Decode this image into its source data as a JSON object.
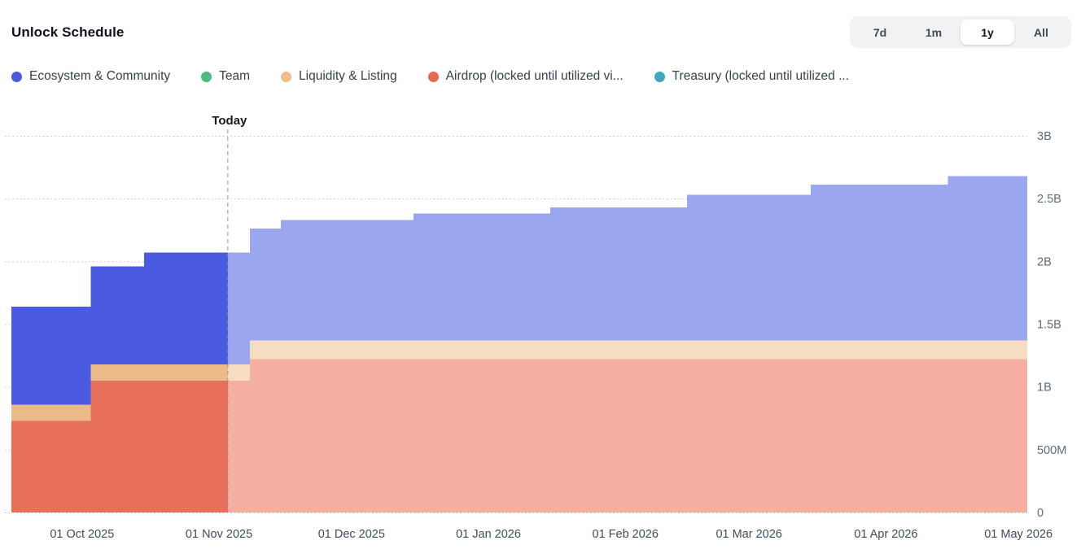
{
  "header": {
    "title": "Unlock Schedule"
  },
  "range_selector": {
    "options": [
      "7d",
      "1m",
      "1y",
      "All"
    ],
    "active": "1y"
  },
  "legend": {
    "items": [
      {
        "label": "Ecosystem & Community",
        "color": "#4A5BE1"
      },
      {
        "label": "Team",
        "color": "#4DBA80"
      },
      {
        "label": "Liquidity & Listing",
        "color": "#EFBD8B"
      },
      {
        "label": "Airdrop (locked until utilized vi...",
        "color": "#E8694F"
      },
      {
        "label": "Treasury (locked until utilized ...",
        "color": "#3FA8BE"
      }
    ]
  },
  "chart_data": {
    "type": "area",
    "subtype": "stacked-step",
    "title": "Unlock Schedule",
    "values_unit": "billions of tokens",
    "x_domain": [
      "2025-09-15",
      "2026-05-03"
    ],
    "today": {
      "date": "2025-11-03",
      "label": "Today"
    },
    "y_max": 3,
    "grid": true,
    "legend_position": "top",
    "y_axis_side": "right",
    "y_ticks": [
      {
        "value": 0,
        "label": "0"
      },
      {
        "value": 0.5,
        "label": "500M"
      },
      {
        "value": 1,
        "label": "1B"
      },
      {
        "value": 1.5,
        "label": "1.5B"
      },
      {
        "value": 2,
        "label": "2B"
      },
      {
        "value": 2.5,
        "label": "2.5B"
      },
      {
        "value": 3,
        "label": "3B"
      }
    ],
    "x_ticks": [
      {
        "date": "2025-10-01",
        "label": "01 Oct 2025"
      },
      {
        "date": "2025-11-01",
        "label": "01 Nov 2025"
      },
      {
        "date": "2025-12-01",
        "label": "01 Dec 2025"
      },
      {
        "date": "2026-01-01",
        "label": "01 Jan 2026"
      },
      {
        "date": "2026-02-01",
        "label": "01 Feb 2026"
      },
      {
        "date": "2026-03-01",
        "label": "01 Mar 2026"
      },
      {
        "date": "2026-04-01",
        "label": "01 Apr 2026"
      },
      {
        "date": "2026-05-01",
        "label": "01 May 2026"
      }
    ],
    "series": [
      {
        "name": "Airdrop (locked until utilized vi...",
        "color": "#E8705A",
        "color_faded": "#F4AFA0",
        "steps": [
          [
            "2025-09-15",
            0.73
          ],
          [
            "2025-10-03",
            1.05
          ],
          [
            "2025-11-08",
            1.22
          ]
        ]
      },
      {
        "name": "Liquidity & Listing",
        "color": "#ECBA89",
        "color_faded": "#F6DCC0",
        "steps": [
          [
            "2025-09-15",
            0.13
          ],
          [
            "2025-11-08",
            0.15
          ]
        ]
      },
      {
        "name": "Ecosystem & Community",
        "color": "#4A5BE1",
        "color_faded": "#9AA6EF",
        "steps": [
          [
            "2025-09-15",
            0.78
          ],
          [
            "2025-10-15",
            0.89
          ],
          [
            "2025-11-15",
            0.96
          ],
          [
            "2025-12-15",
            1.01
          ],
          [
            "2026-01-15",
            1.06
          ],
          [
            "2026-02-15",
            1.16
          ],
          [
            "2026-03-15",
            1.24
          ],
          [
            "2026-04-15",
            1.31
          ]
        ]
      },
      {
        "name": "Team",
        "color": "#4DBA80",
        "color_faded": "#A8DFC3",
        "steps": [
          [
            "2025-09-15",
            0
          ]
        ]
      },
      {
        "name": "Treasury (locked until utilized ...",
        "color": "#3FA8BE",
        "color_faded": "#9DD3DE",
        "steps": [
          [
            "2025-09-15",
            0
          ]
        ]
      }
    ]
  }
}
